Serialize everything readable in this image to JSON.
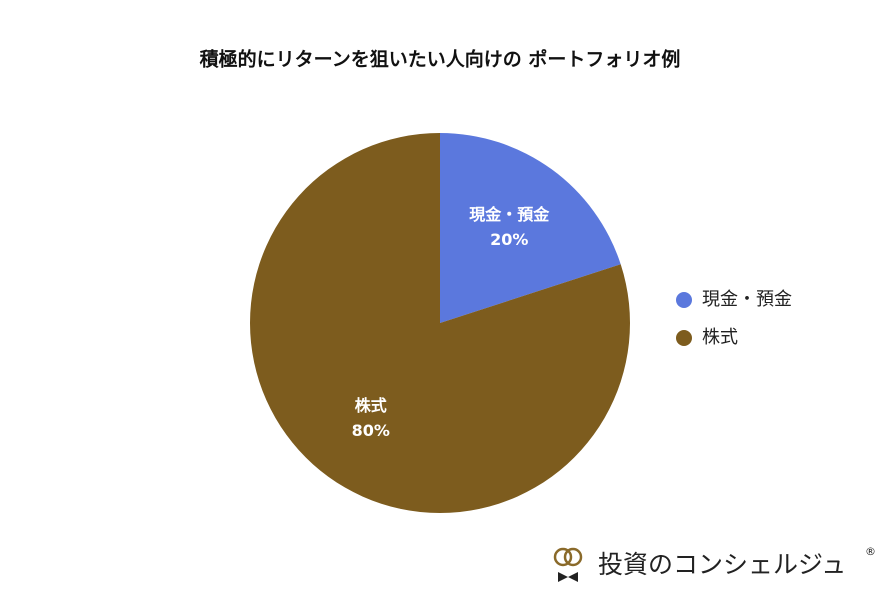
{
  "chart_data": {
    "type": "pie",
    "title": "積極的にリターンを狙いたい人向けの ポートフォリオ例",
    "categories": [
      "現金・預金",
      "株式"
    ],
    "values": [
      20,
      80
    ],
    "value_labels": [
      "20%",
      "80%"
    ],
    "colors": [
      "#5b78dd",
      "#7d5c1e"
    ],
    "legend": "right",
    "annotations": [
      "投資のコンシェルジュ",
      "®"
    ]
  }
}
